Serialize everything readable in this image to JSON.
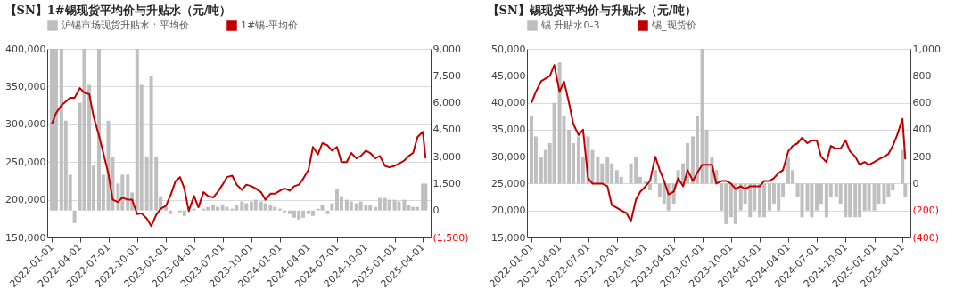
{
  "chart_data": [
    {
      "type": "bar",
      "title": "【SN】1#锡现货平均价与升贴水（元/吨）",
      "x": [
        "2022-01-01",
        "2022-01-15",
        "2022-02-01",
        "2022-02-15",
        "2022-03-01",
        "2022-03-15",
        "2022-04-01",
        "2022-04-15",
        "2022-05-01",
        "2022-05-15",
        "2022-06-01",
        "2022-06-15",
        "2022-07-01",
        "2022-07-15",
        "2022-08-01",
        "2022-08-15",
        "2022-09-01",
        "2022-09-15",
        "2022-10-01",
        "2022-10-15",
        "2022-11-01",
        "2022-11-15",
        "2022-12-01",
        "2022-12-15",
        "2023-01-01",
        "2023-01-15",
        "2023-02-01",
        "2023-02-15",
        "2023-03-01",
        "2023-03-15",
        "2023-04-01",
        "2023-04-15",
        "2023-05-01",
        "2023-05-15",
        "2023-06-01",
        "2023-06-15",
        "2023-07-01",
        "2023-07-15",
        "2023-08-01",
        "2023-08-15",
        "2023-09-01",
        "2023-09-15",
        "2023-10-01",
        "2023-10-15",
        "2023-11-01",
        "2023-11-15",
        "2023-12-01",
        "2023-12-15",
        "2024-01-01",
        "2024-01-15",
        "2024-02-01",
        "2024-02-15",
        "2024-03-01",
        "2024-03-15",
        "2024-04-01",
        "2024-04-15",
        "2024-05-01",
        "2024-05-15",
        "2024-06-01",
        "2024-06-15",
        "2024-07-01",
        "2024-07-15",
        "2024-08-01",
        "2024-08-15",
        "2024-09-01",
        "2024-09-15",
        "2024-10-01",
        "2024-10-15",
        "2024-11-01",
        "2024-11-15",
        "2024-12-01",
        "2024-12-15",
        "2025-01-01",
        "2025-01-15",
        "2025-02-01",
        "2025-02-15",
        "2025-03-01",
        "2025-03-15",
        "2025-04-01",
        "2025-04-10"
      ],
      "series": [
        {
          "name": "沪锡市场现货升贴水：平均价",
          "type": "bar",
          "axis": "y2",
          "color": "#bfbfbf",
          "values": [
            9000,
            9000,
            9000,
            5000,
            2000,
            -700,
            6000,
            9000,
            7000,
            2500,
            9000,
            2000,
            5000,
            3000,
            1500,
            2000,
            2000,
            1000,
            9000,
            7000,
            3000,
            7500,
            3000,
            800,
            300,
            -200,
            0,
            -100,
            -300,
            0,
            100,
            0,
            100,
            200,
            300,
            200,
            300,
            200,
            100,
            300,
            500,
            400,
            500,
            600,
            500,
            400,
            300,
            200,
            100,
            -100,
            -200,
            -400,
            -500,
            -400,
            -200,
            -300,
            100,
            300,
            -200,
            400,
            1200,
            800,
            600,
            500,
            400,
            500,
            300,
            300,
            200,
            700,
            700,
            600,
            600,
            500,
            600,
            300,
            200,
            200,
            1500,
            1500
          ]
        },
        {
          "name": "1#锡-平均价",
          "type": "line",
          "color": "#c00000",
          "values": [
            300000,
            315000,
            325000,
            330000,
            335000,
            335000,
            348000,
            342000,
            340000,
            310000,
            285000,
            262000,
            235000,
            200000,
            197000,
            203000,
            200000,
            200000,
            181000,
            182000,
            175000,
            165000,
            180000,
            188000,
            192000,
            205000,
            225000,
            230000,
            215000,
            185000,
            205000,
            190000,
            210000,
            205000,
            203000,
            210000,
            220000,
            230000,
            232000,
            220000,
            213000,
            220000,
            218000,
            215000,
            210000,
            200000,
            208000,
            208000,
            212000,
            215000,
            212000,
            218000,
            220000,
            228000,
            240000,
            270000,
            260000,
            275000,
            272000,
            265000,
            270000,
            250000,
            250000,
            262000,
            255000,
            258000,
            265000,
            262000,
            255000,
            258000,
            245000,
            243000,
            245000,
            248000,
            252000,
            258000,
            262000,
            283000,
            290000,
            255000
          ]
        }
      ],
      "xlim": [
        "2022-01-01",
        "2025-04-12"
      ],
      "xticks": [
        "2022-01-01",
        "2022-04-01",
        "2022-07-01",
        "2022-10-01",
        "2023-01-01",
        "2023-04-01",
        "2023-07-01",
        "2023-10-01",
        "2024-01-01",
        "2024-04-01",
        "2024-07-01",
        "2024-10-01",
        "2025-01-01",
        "2025-04-01"
      ],
      "ylim": [
        150000,
        400000
      ],
      "yticks": [
        {
          "value": 150000,
          "label": "150,000"
        },
        {
          "value": 200000,
          "label": "200,000"
        },
        {
          "value": 250000,
          "label": "250,000"
        },
        {
          "value": 300000,
          "label": "300,000"
        },
        {
          "value": 350000,
          "label": "350,000"
        },
        {
          "value": 400000,
          "label": "400,000"
        }
      ],
      "y2lim": [
        -1500,
        9000
      ],
      "y2ticks": [
        {
          "value": -1500,
          "label": "(1,500)"
        },
        {
          "value": 0,
          "label": "0"
        },
        {
          "value": 1500,
          "label": "1,500"
        },
        {
          "value": 3000,
          "label": "3,000"
        },
        {
          "value": 4500,
          "label": "4,500"
        },
        {
          "value": 6000,
          "label": "6,000"
        },
        {
          "value": 7500,
          "label": "7,500"
        },
        {
          "value": 9000,
          "label": "9,000"
        }
      ],
      "grid": "y",
      "legend": "top"
    },
    {
      "type": "bar",
      "title": "【SN】锡现货平均价与升贴水（元/吨）",
      "x": [
        "2022-01-01",
        "2022-01-15",
        "2022-02-01",
        "2022-02-15",
        "2022-03-01",
        "2022-03-15",
        "2022-04-01",
        "2022-04-15",
        "2022-05-01",
        "2022-05-15",
        "2022-06-01",
        "2022-06-15",
        "2022-07-01",
        "2022-07-15",
        "2022-08-01",
        "2022-08-15",
        "2022-09-01",
        "2022-09-15",
        "2022-10-01",
        "2022-10-15",
        "2022-11-01",
        "2022-11-15",
        "2022-12-01",
        "2022-12-15",
        "2023-01-01",
        "2023-01-15",
        "2023-02-01",
        "2023-02-15",
        "2023-03-01",
        "2023-03-15",
        "2023-04-01",
        "2023-04-15",
        "2023-05-01",
        "2023-05-15",
        "2023-06-01",
        "2023-06-15",
        "2023-07-01",
        "2023-07-15",
        "2023-08-01",
        "2023-08-15",
        "2023-09-01",
        "2023-09-15",
        "2023-10-01",
        "2023-10-15",
        "2023-11-01",
        "2023-11-15",
        "2023-12-01",
        "2023-12-15",
        "2024-01-01",
        "2024-01-15",
        "2024-02-01",
        "2024-02-15",
        "2024-03-01",
        "2024-03-15",
        "2024-04-01",
        "2024-04-15",
        "2024-05-01",
        "2024-05-15",
        "2024-06-01",
        "2024-06-15",
        "2024-07-01",
        "2024-07-15",
        "2024-08-01",
        "2024-08-15",
        "2024-09-01",
        "2024-09-15",
        "2024-10-01",
        "2024-10-15",
        "2024-11-01",
        "2024-11-15",
        "2024-12-01",
        "2024-12-15",
        "2025-01-01",
        "2025-01-15",
        "2025-02-01",
        "2025-02-15",
        "2025-03-01",
        "2025-03-15",
        "2025-04-01",
        "2025-04-10"
      ],
      "series": [
        {
          "name": "锡 升贴水0-3",
          "type": "bar",
          "axis": "y2",
          "color": "#bfbfbf",
          "values": [
            500,
            350,
            200,
            250,
            300,
            600,
            900,
            500,
            400,
            300,
            350,
            200,
            350,
            250,
            200,
            150,
            200,
            150,
            100,
            50,
            0,
            150,
            200,
            50,
            20,
            -50,
            100,
            -100,
            -150,
            -200,
            -150,
            100,
            150,
            300,
            350,
            500,
            1000,
            400,
            200,
            100,
            -200,
            -300,
            -250,
            -300,
            -200,
            -150,
            -250,
            -200,
            -250,
            -250,
            -200,
            -150,
            -200,
            -100,
            200,
            100,
            -100,
            -250,
            -200,
            -250,
            -200,
            -150,
            -250,
            -100,
            -100,
            -150,
            -250,
            -250,
            -250,
            -250,
            -200,
            -200,
            -200,
            -150,
            -150,
            -100,
            -50,
            0,
            250,
            -100
          ]
        },
        {
          "name": "锡_现货价",
          "type": "line",
          "color": "#c00000",
          "values": [
            40000,
            42000,
            44000,
            44500,
            45000,
            47000,
            42000,
            44000,
            40000,
            36000,
            34000,
            35000,
            26000,
            25000,
            25000,
            25000,
            24500,
            21000,
            20500,
            20000,
            19500,
            18000,
            22000,
            23500,
            24500,
            25500,
            30000,
            27500,
            25500,
            23000,
            23500,
            26000,
            24500,
            27500,
            25500,
            27000,
            28500,
            28500,
            28500,
            25000,
            25500,
            25500,
            25000,
            24000,
            24500,
            24000,
            24500,
            24500,
            24500,
            25500,
            25500,
            26000,
            27000,
            27500,
            31000,
            32000,
            32500,
            33500,
            32500,
            33000,
            33000,
            30000,
            29000,
            32000,
            31500,
            31500,
            33000,
            31000,
            30000,
            28500,
            29000,
            28500,
            29000,
            29500,
            30000,
            30500,
            32000,
            34000,
            37000,
            29500
          ]
        }
      ],
      "xlim": [
        "2022-01-01",
        "2025-04-12"
      ],
      "xticks": [
        "2022-01-01",
        "2022-04-01",
        "2022-07-01",
        "2022-10-01",
        "2023-01-01",
        "2023-04-01",
        "2023-07-01",
        "2023-10-01",
        "2024-01-01",
        "2024-04-01",
        "2024-07-01",
        "2024-10-01",
        "2025-01-01",
        "2025-04-01"
      ],
      "ylim": [
        15000,
        50000
      ],
      "yticks": [
        {
          "value": 15000,
          "label": "15,000"
        },
        {
          "value": 20000,
          "label": "20,000"
        },
        {
          "value": 25000,
          "label": "25,000"
        },
        {
          "value": 30000,
          "label": "30,000"
        },
        {
          "value": 35000,
          "label": "35,000"
        },
        {
          "value": 40000,
          "label": "40,000"
        },
        {
          "value": 45000,
          "label": "45,000"
        },
        {
          "value": 50000,
          "label": "50,000"
        }
      ],
      "y2lim": [
        -400,
        1000
      ],
      "y2ticks": [
        {
          "value": -400,
          "label": "(400)"
        },
        {
          "value": -200,
          "label": "(200)"
        },
        {
          "value": 0,
          "label": "0"
        },
        {
          "value": 200,
          "label": "200"
        },
        {
          "value": 400,
          "label": "400"
        },
        {
          "value": 600,
          "label": "600"
        },
        {
          "value": 800,
          "label": "800"
        },
        {
          "value": 1000,
          "label": "1,000"
        }
      ],
      "grid": "y",
      "legend": "top"
    }
  ]
}
